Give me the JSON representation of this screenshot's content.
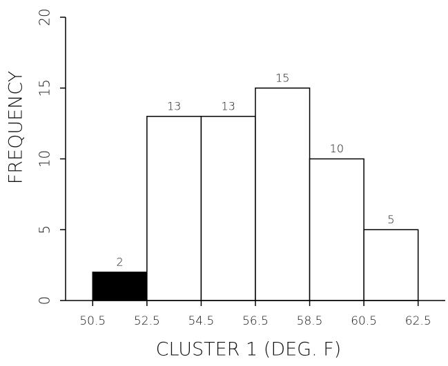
{
  "chart_data": {
    "type": "histogram",
    "xlabel": "CLUSTER 1  (DEG. F)",
    "ylabel": "FREQUENCY",
    "bins": [
      50.5,
      52.5,
      54.5,
      56.5,
      58.5,
      60.5,
      62.5
    ],
    "counts": [
      2,
      13,
      13,
      15,
      10,
      5
    ],
    "colors": [
      "#000000",
      "#ffffff",
      "#ffffff",
      "#ffffff",
      "#ffffff",
      "#ffffff"
    ],
    "edgecolor": "#000000",
    "xlim": [
      49.5,
      63.5
    ],
    "xticks": [
      50.5,
      52.5,
      54.5,
      56.5,
      58.5,
      60.5,
      62.5
    ],
    "ylim": [
      0,
      20
    ],
    "yticks": [
      0,
      5,
      10,
      15,
      20
    ]
  }
}
